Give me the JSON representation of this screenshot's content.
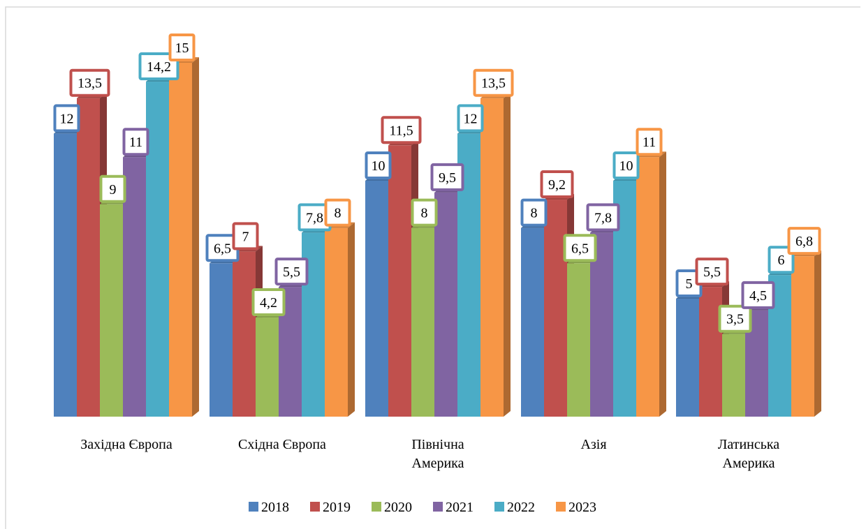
{
  "chart_data": {
    "type": "bar3d",
    "categories": [
      "Західна Європа",
      "Східна Європа",
      "Північна Америка",
      "Азія",
      "Латинська Америка"
    ],
    "series": [
      {
        "name": "2018",
        "color": "#4f81bd",
        "values": [
          12,
          6.5,
          10,
          8,
          5
        ],
        "value_labels": [
          "12",
          "6,5",
          "10",
          "8",
          "5"
        ]
      },
      {
        "name": "2019",
        "color": "#c0504d",
        "values": [
          13.5,
          7,
          11.5,
          9.2,
          5.5
        ],
        "value_labels": [
          "13,5",
          "7",
          "11,5",
          "9,2",
          "5,5"
        ]
      },
      {
        "name": "2020",
        "color": "#9bbb59",
        "values": [
          9,
          4.2,
          8,
          6.5,
          3.5
        ],
        "value_labels": [
          "9",
          "4,2",
          "8",
          "6,5",
          "3,5"
        ]
      },
      {
        "name": "2021",
        "color": "#8064a2",
        "values": [
          11,
          5.5,
          9.5,
          7.8,
          4.5
        ],
        "value_labels": [
          "11",
          "5,5",
          "9,5",
          "7,8",
          "4,5"
        ]
      },
      {
        "name": "2022",
        "color": "#4bacc6",
        "values": [
          14.2,
          7.8,
          12,
          10,
          6
        ],
        "value_labels": [
          "14,2",
          "7,8",
          "12",
          "10",
          "6"
        ]
      },
      {
        "name": "2023",
        "color": "#f79646",
        "values": [
          15,
          8,
          13.5,
          11,
          6.8
        ],
        "value_labels": [
          "15",
          "8",
          "13,5",
          "11",
          "6,8"
        ]
      }
    ],
    "legend": "bottom"
  }
}
